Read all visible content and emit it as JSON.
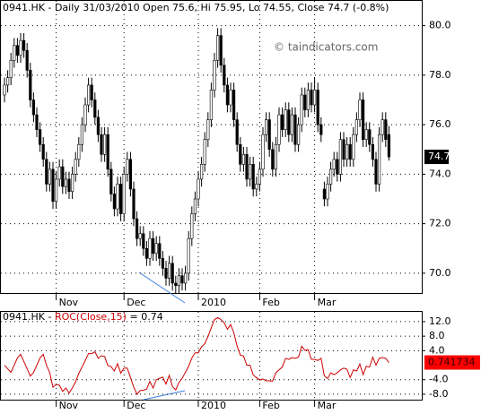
{
  "chart_data": [
    {
      "type": "candlestick",
      "title": "0941.HK - Daily 31/03/2010 Open 75.6, Hi 75.95, Lo 74.55, Close 74.7 (-0.8%)",
      "watermark": "© taindicators.com",
      "categories": [
        null,
        null,
        null,
        null,
        null,
        null,
        null,
        null,
        null,
        null,
        null,
        null,
        null,
        null,
        null,
        null,
        "Nov",
        null,
        null,
        null,
        null,
        null,
        null,
        null,
        null,
        null,
        null,
        null,
        null,
        null,
        null,
        null,
        null,
        null,
        null,
        null,
        null,
        "Dec",
        null,
        null,
        null,
        null,
        null,
        null,
        null,
        null,
        null,
        null,
        null,
        null,
        null,
        null,
        null,
        null,
        null,
        null,
        null,
        null,
        null,
        null,
        "2010",
        null,
        null,
        null,
        null,
        null,
        null,
        null,
        null,
        null,
        null,
        null,
        null,
        null,
        null,
        null,
        null,
        null,
        null,
        "Feb",
        null,
        null,
        null,
        null,
        null,
        null,
        null,
        null,
        null,
        null,
        null,
        null,
        null,
        null,
        null,
        null,
        "Mar",
        null,
        null,
        null,
        null,
        null,
        null,
        null,
        null,
        null,
        null,
        null,
        null,
        null,
        null,
        null,
        null,
        null,
        null,
        null,
        null,
        null,
        null,
        null
      ],
      "ohlc": [
        [
          77.2,
          77.9,
          76.9,
          77.6
        ],
        [
          77.6,
          78.2,
          77.3,
          77.9
        ],
        [
          77.9,
          78.9,
          77.6,
          78.6
        ],
        [
          78.6,
          79.5,
          78.3,
          79.2
        ],
        [
          79.2,
          79.5,
          78.5,
          78.8
        ],
        [
          78.8,
          79.7,
          78.5,
          79.4
        ],
        [
          79.4,
          79.7,
          78.7,
          79.0
        ],
        [
          79.0,
          79.3,
          77.9,
          78.2
        ],
        [
          78.2,
          78.5,
          76.7,
          77.0
        ],
        [
          77.0,
          77.3,
          76.1,
          76.4
        ],
        [
          76.4,
          76.7,
          75.5,
          75.8
        ],
        [
          75.8,
          76.1,
          74.9,
          75.2
        ],
        [
          75.2,
          75.5,
          74.3,
          74.6
        ],
        [
          74.6,
          74.9,
          73.3,
          73.6
        ],
        [
          73.6,
          74.5,
          73.3,
          74.2
        ],
        [
          74.2,
          74.5,
          72.6,
          72.9
        ],
        [
          72.9,
          74.1,
          72.6,
          73.8
        ],
        [
          73.8,
          74.6,
          73.5,
          74.3
        ],
        [
          74.3,
          74.6,
          73.2,
          73.5
        ],
        [
          73.5,
          74.1,
          73.2,
          73.8
        ],
        [
          73.8,
          74.1,
          73.0,
          73.3
        ],
        [
          73.3,
          74.3,
          73.0,
          74.0
        ],
        [
          74.0,
          74.9,
          73.7,
          74.6
        ],
        [
          74.6,
          75.5,
          74.3,
          75.2
        ],
        [
          75.2,
          76.3,
          74.9,
          76.0
        ],
        [
          76.0,
          77.1,
          75.7,
          76.8
        ],
        [
          76.8,
          77.9,
          76.5,
          77.6
        ],
        [
          77.6,
          77.9,
          76.7,
          77.0
        ],
        [
          77.0,
          77.3,
          76.0,
          76.3
        ],
        [
          76.3,
          76.6,
          75.3,
          75.6
        ],
        [
          75.6,
          75.9,
          74.5,
          74.8
        ],
        [
          74.8,
          75.9,
          74.5,
          75.6
        ],
        [
          75.6,
          75.9,
          73.9,
          74.2
        ],
        [
          74.2,
          74.5,
          72.9,
          73.2
        ],
        [
          73.2,
          73.5,
          72.3,
          72.6
        ],
        [
          72.6,
          73.9,
          72.3,
          73.6
        ],
        [
          73.6,
          73.9,
          72.1,
          72.4
        ],
        [
          72.4,
          74.3,
          72.1,
          74.0
        ],
        [
          74.0,
          74.9,
          73.7,
          74.6
        ],
        [
          74.6,
          74.9,
          73.1,
          73.4
        ],
        [
          73.4,
          73.7,
          71.9,
          72.2
        ],
        [
          72.2,
          72.5,
          71.1,
          71.4
        ],
        [
          71.4,
          71.9,
          71.1,
          71.6
        ],
        [
          71.6,
          71.9,
          70.7,
          71.0
        ],
        [
          71.0,
          71.3,
          70.3,
          70.6
        ],
        [
          70.6,
          71.7,
          70.3,
          71.4
        ],
        [
          71.4,
          71.7,
          70.5,
          70.8
        ],
        [
          70.8,
          71.5,
          70.5,
          71.2
        ],
        [
          71.2,
          71.5,
          70.3,
          70.6
        ],
        [
          70.6,
          70.9,
          69.9,
          70.2
        ],
        [
          70.2,
          70.5,
          69.5,
          69.8
        ],
        [
          69.8,
          70.7,
          69.5,
          70.4
        ],
        [
          70.4,
          70.7,
          69.3,
          69.6
        ],
        [
          69.6,
          69.9,
          69.2,
          69.5
        ],
        [
          69.5,
          70.2,
          69.2,
          69.9
        ],
        [
          69.9,
          70.2,
          69.3,
          69.6
        ],
        [
          69.6,
          70.3,
          69.3,
          70.0
        ],
        [
          70.0,
          71.7,
          69.7,
          71.4
        ],
        [
          71.4,
          72.7,
          71.1,
          72.4
        ],
        [
          72.4,
          73.3,
          72.1,
          73.0
        ],
        [
          73.0,
          74.1,
          72.7,
          73.8
        ],
        [
          73.8,
          74.7,
          73.5,
          74.4
        ],
        [
          74.4,
          75.7,
          74.1,
          75.4
        ],
        [
          75.4,
          76.5,
          75.1,
          76.2
        ],
        [
          76.2,
          77.7,
          75.9,
          77.4
        ],
        [
          77.4,
          78.9,
          77.1,
          78.6
        ],
        [
          78.6,
          79.9,
          78.3,
          79.6
        ],
        [
          79.6,
          79.9,
          78.1,
          78.4
        ],
        [
          78.4,
          78.7,
          77.3,
          77.6
        ],
        [
          77.6,
          77.9,
          76.5,
          76.8
        ],
        [
          76.8,
          77.7,
          76.5,
          77.4
        ],
        [
          77.4,
          77.7,
          75.9,
          76.2
        ],
        [
          76.2,
          76.5,
          74.9,
          75.2
        ],
        [
          75.2,
          75.5,
          74.1,
          74.4
        ],
        [
          74.4,
          75.1,
          74.1,
          74.8
        ],
        [
          74.8,
          75.1,
          73.5,
          73.8
        ],
        [
          73.8,
          74.7,
          73.5,
          74.4
        ],
        [
          74.4,
          74.7,
          73.1,
          73.4
        ],
        [
          73.4,
          73.9,
          73.1,
          73.6
        ],
        [
          73.6,
          74.5,
          73.3,
          74.2
        ],
        [
          74.2,
          75.9,
          73.9,
          75.6
        ],
        [
          75.6,
          76.5,
          75.3,
          76.2
        ],
        [
          76.2,
          76.5,
          74.7,
          75.0
        ],
        [
          75.0,
          75.3,
          73.9,
          74.2
        ],
        [
          74.2,
          75.5,
          73.9,
          75.2
        ],
        [
          75.2,
          76.7,
          74.9,
          76.4
        ],
        [
          76.4,
          76.7,
          75.5,
          75.8
        ],
        [
          75.8,
          76.9,
          75.5,
          76.6
        ],
        [
          76.6,
          76.9,
          75.3,
          75.6
        ],
        [
          75.6,
          76.7,
          75.3,
          76.4
        ],
        [
          76.4,
          76.7,
          74.9,
          75.2
        ],
        [
          75.2,
          76.3,
          74.9,
          76.0
        ],
        [
          76.0,
          77.5,
          75.7,
          77.2
        ],
        [
          77.2,
          77.5,
          76.3,
          76.6
        ],
        [
          76.6,
          77.7,
          76.3,
          77.4
        ],
        [
          77.4,
          77.7,
          76.5,
          76.8
        ],
        [
          76.8,
          77.9,
          76.5,
          77.4
        ],
        [
          77.4,
          77.7,
          75.7,
          76.0
        ],
        [
          76.0,
          76.3,
          75.3,
          75.6
        ],
        [
          73.4,
          73.7,
          72.7,
          73.0
        ],
        [
          73.0,
          73.9,
          72.7,
          73.6
        ],
        [
          73.6,
          74.5,
          73.3,
          74.2
        ],
        [
          74.2,
          74.9,
          73.9,
          74.6
        ],
        [
          74.6,
          74.9,
          73.7,
          74.0
        ],
        [
          74.0,
          75.7,
          73.7,
          75.4
        ],
        [
          75.4,
          75.7,
          74.3,
          74.6
        ],
        [
          74.6,
          75.5,
          74.3,
          75.2
        ],
        [
          75.2,
          75.5,
          74.3,
          74.6
        ],
        [
          74.6,
          75.9,
          74.3,
          75.6
        ],
        [
          75.6,
          76.5,
          75.3,
          76.2
        ],
        [
          76.2,
          77.3,
          75.9,
          77.0
        ],
        [
          77.0,
          77.3,
          75.1,
          75.4
        ],
        [
          75.4,
          76.1,
          75.1,
          75.8
        ],
        [
          75.8,
          76.1,
          74.9,
          75.2
        ],
        [
          75.2,
          75.5,
          74.3,
          74.6
        ],
        [
          74.6,
          74.9,
          73.3,
          73.6
        ],
        [
          73.6,
          75.9,
          73.3,
          75.6
        ],
        [
          75.6,
          76.5,
          75.3,
          76.2
        ],
        [
          76.2,
          76.5,
          75.1,
          75.4
        ],
        [
          75.6,
          75.95,
          74.55,
          74.7
        ]
      ],
      "last_label": "74.7",
      "ylim": [
        69.2,
        81.0
      ],
      "yticks": [
        {
          "value": 70,
          "label": "70.0"
        },
        {
          "value": 72,
          "label": "72.0"
        },
        {
          "value": 74,
          "label": "74.0"
        },
        {
          "value": 76,
          "label": "76.0"
        },
        {
          "value": 78,
          "label": "78.0"
        },
        {
          "value": 80,
          "label": "80.0"
        }
      ],
      "grid": true
    },
    {
      "type": "line",
      "title_parts": [
        "0941.HK - ",
        "ROC(Close,15)",
        " = 0.74"
      ],
      "categories": [
        null,
        null,
        null,
        null,
        null,
        null,
        null,
        null,
        null,
        null,
        null,
        null,
        null,
        null,
        null,
        null,
        "Nov",
        null,
        null,
        null,
        null,
        null,
        null,
        null,
        null,
        null,
        null,
        null,
        null,
        null,
        null,
        null,
        null,
        null,
        null,
        null,
        null,
        "Dec",
        null,
        null,
        null,
        null,
        null,
        null,
        null,
        null,
        null,
        null,
        null,
        null,
        null,
        null,
        null,
        null,
        null,
        null,
        null,
        null,
        null,
        null,
        "2010",
        null,
        null,
        null,
        null,
        null,
        null,
        null,
        null,
        null,
        null,
        null,
        null,
        null,
        null,
        null,
        null,
        null,
        null,
        "Feb",
        null,
        null,
        null,
        null,
        null,
        null,
        null,
        null,
        null,
        null,
        null,
        null,
        null,
        null,
        null,
        null,
        "Mar",
        null,
        null,
        null,
        null,
        null,
        null,
        null,
        null,
        null,
        null,
        null,
        null,
        null,
        null,
        null,
        null,
        null,
        null,
        null,
        null,
        null,
        null,
        null
      ],
      "series": [
        {
          "name": "ROC(Close,15)",
          "color": "#cc0000",
          "values": [
            0,
            -1,
            -2,
            0,
            2,
            3,
            1,
            -1,
            -3,
            -2,
            0,
            2,
            3,
            0,
            -2,
            -6.1,
            -5.3,
            -5.5,
            -7.2,
            -6.3,
            -7.7,
            -6.3,
            -4.6,
            -2.3,
            -0.5,
            1.3,
            3.2,
            3.2,
            3.7,
            1.9,
            2.6,
            2.4,
            -0.1,
            -0.4,
            -1.6,
            0.4,
            -2.2,
            -0.8,
            -0.8,
            -3.4,
            -6.0,
            -8.0,
            -7.0,
            -6.9,
            -6.6,
            -4.5,
            -6.3,
            -4.0,
            -3.6,
            -3.3,
            -5.2,
            -2.8,
            -5.9,
            -6.8,
            -4.8,
            -3.6,
            -2.0,
            -0.3,
            2.0,
            3.4,
            3.4,
            5.1,
            5.9,
            7.9,
            10.3,
            12.6,
            13.1,
            12.6,
            11.7,
            9.9,
            11.2,
            8.9,
            5.3,
            2.8,
            2.5,
            0.0,
            0.0,
            -2.7,
            -3.4,
            -4.1,
            -3.8,
            -4.3,
            -4.3,
            -4.4,
            -2.1,
            -1.3,
            -0.5,
            1.9,
            1.6,
            2.1,
            1.9,
            2.2,
            5.2,
            4.1,
            4.3,
            1.6,
            1.6,
            1.3,
            1.9,
            -2.9,
            -3.7,
            -2.1,
            -2.6,
            -2.1,
            -1.3,
            -0.8,
            -1.1,
            -3.4,
            -1.3,
            -1.6,
            0.3,
            -2.6,
            -0.3,
            -0.5,
            2.2,
            0.0,
            1.9,
            2.1,
            1.9,
            0.741734
          ]
        }
      ],
      "last_label": "0.741734",
      "ylim": [
        -9.5,
        14.7
      ],
      "yticks": [
        {
          "value": 12,
          "label": "12.0"
        },
        {
          "value": 8,
          "label": "8.0"
        },
        {
          "value": 4,
          "label": "4.0"
        },
        {
          "value": -4,
          "label": "-4.0"
        },
        {
          "value": -8,
          "label": "-8.0"
        }
      ],
      "grid": true
    }
  ]
}
